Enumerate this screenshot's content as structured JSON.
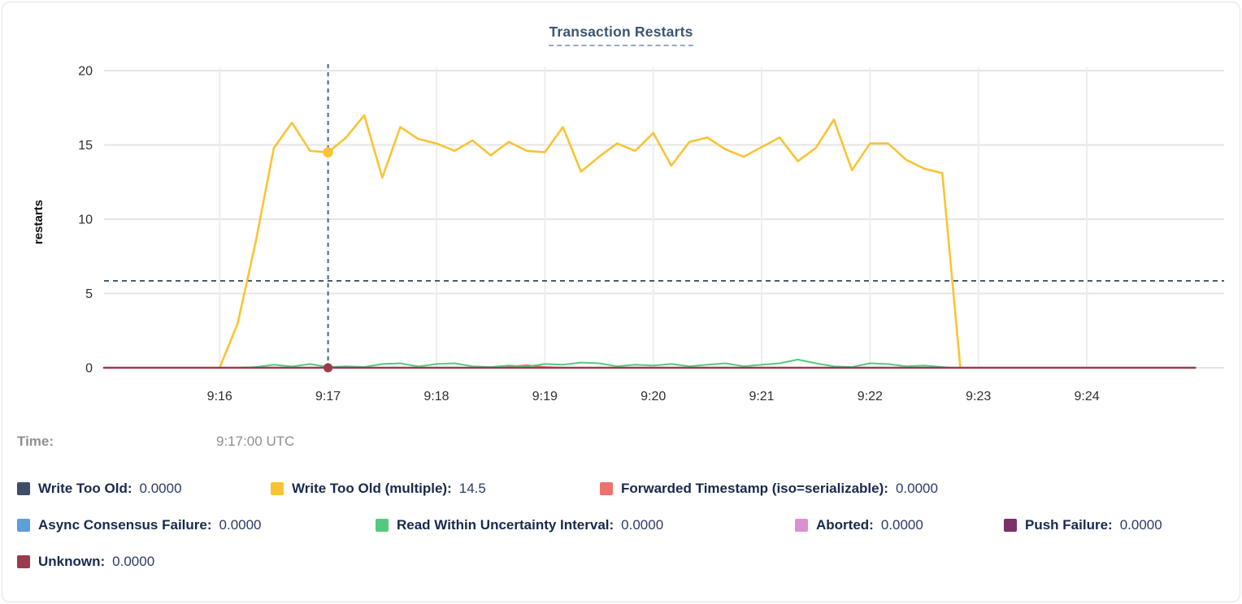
{
  "tooltip": {
    "label": "Time:",
    "value": "9:17:00 UTC"
  },
  "chart_data": {
    "type": "line",
    "title": "Transaction Restarts",
    "xlabel": "",
    "ylabel": "restarts",
    "ylim": [
      0,
      20
    ],
    "yticks": [
      0,
      5,
      10,
      15,
      20
    ],
    "xticks": [
      "9:16",
      "9:17",
      "9:18",
      "9:19",
      "9:20",
      "9:21",
      "9:22",
      "9:23",
      "9:24"
    ],
    "x_tick_interval_seconds": 60,
    "x_domain_seconds": [
      -64,
      556
    ],
    "grid": true,
    "legend_position": "bottom",
    "reference_line_y": 5.85,
    "cursor": {
      "time_label": "9:17:00 UTC",
      "t_seconds": 60
    },
    "cursor_dots": [
      {
        "series": "Write Too Old (multiple)",
        "t": 60,
        "v": 14.5
      },
      {
        "series": "Unknown",
        "t": 60,
        "v": 0
      }
    ],
    "series": [
      {
        "name": "Write Too Old",
        "color": "#3E4E68",
        "cursor_value": "0.0000",
        "points": [
          [
            -64,
            0
          ],
          [
            405,
            0
          ]
        ]
      },
      {
        "name": "Write Too Old (multiple)",
        "color": "#F9C433",
        "cursor_value": "14.5",
        "points": [
          [
            0,
            0
          ],
          [
            10,
            3.0
          ],
          [
            20,
            8.5
          ],
          [
            30,
            14.8
          ],
          [
            40,
            16.5
          ],
          [
            50,
            14.6
          ],
          [
            60,
            14.5
          ],
          [
            70,
            15.5
          ],
          [
            80,
            17.0
          ],
          [
            90,
            12.8
          ],
          [
            100,
            16.2
          ],
          [
            110,
            15.4
          ],
          [
            120,
            15.1
          ],
          [
            130,
            14.6
          ],
          [
            140,
            15.3
          ],
          [
            150,
            14.3
          ],
          [
            160,
            15.2
          ],
          [
            170,
            14.6
          ],
          [
            180,
            14.5
          ],
          [
            190,
            16.2
          ],
          [
            200,
            13.2
          ],
          [
            210,
            14.2
          ],
          [
            220,
            15.1
          ],
          [
            230,
            14.6
          ],
          [
            240,
            15.8
          ],
          [
            250,
            13.6
          ],
          [
            260,
            15.2
          ],
          [
            270,
            15.5
          ],
          [
            280,
            14.7
          ],
          [
            290,
            14.2
          ],
          [
            300,
            14.85
          ],
          [
            310,
            15.5
          ],
          [
            320,
            13.9
          ],
          [
            330,
            14.8
          ],
          [
            340,
            16.7
          ],
          [
            350,
            13.3
          ],
          [
            360,
            15.1
          ],
          [
            370,
            15.1
          ],
          [
            380,
            14.0
          ],
          [
            390,
            13.4
          ],
          [
            400,
            13.1
          ],
          [
            410,
            0
          ]
        ]
      },
      {
        "name": "Forwarded Timestamp (iso=serializable)",
        "color": "#EE716F",
        "cursor_value": "0.0000",
        "points": [
          [
            -64,
            0
          ],
          [
            150,
            0
          ],
          [
            160,
            0.08
          ],
          [
            170,
            0.17
          ],
          [
            180,
            0.05
          ],
          [
            190,
            0
          ],
          [
            405,
            0
          ]
        ]
      },
      {
        "name": "Async Consensus Failure",
        "color": "#5C9FD9",
        "cursor_value": "0.0000",
        "points": [
          [
            -64,
            0
          ],
          [
            405,
            0
          ]
        ]
      },
      {
        "name": "Read Within Uncertainty Interval",
        "color": "#55C980",
        "cursor_value": "0.0000",
        "points": [
          [
            -64,
            0
          ],
          [
            0,
            0
          ],
          [
            10,
            0
          ],
          [
            20,
            0.05
          ],
          [
            30,
            0.2
          ],
          [
            40,
            0.08
          ],
          [
            50,
            0.25
          ],
          [
            60,
            0.05
          ],
          [
            70,
            0.1
          ],
          [
            80,
            0.05
          ],
          [
            90,
            0.25
          ],
          [
            100,
            0.3
          ],
          [
            110,
            0.08
          ],
          [
            120,
            0.25
          ],
          [
            130,
            0.3
          ],
          [
            140,
            0.1
          ],
          [
            150,
            0.05
          ],
          [
            160,
            0.15
          ],
          [
            170,
            0.08
          ],
          [
            180,
            0.25
          ],
          [
            190,
            0.2
          ],
          [
            200,
            0.35
          ],
          [
            210,
            0.3
          ],
          [
            220,
            0.1
          ],
          [
            230,
            0.2
          ],
          [
            240,
            0.15
          ],
          [
            250,
            0.25
          ],
          [
            260,
            0.1
          ],
          [
            270,
            0.2
          ],
          [
            280,
            0.3
          ],
          [
            290,
            0.1
          ],
          [
            300,
            0.2
          ],
          [
            310,
            0.3
          ],
          [
            320,
            0.55
          ],
          [
            330,
            0.3
          ],
          [
            340,
            0.1
          ],
          [
            350,
            0.05
          ],
          [
            360,
            0.3
          ],
          [
            370,
            0.25
          ],
          [
            380,
            0.1
          ],
          [
            390,
            0.15
          ],
          [
            400,
            0.05
          ],
          [
            405,
            0
          ]
        ]
      },
      {
        "name": "Aborted",
        "color": "#DC8FD3",
        "cursor_value": "0.0000",
        "points": [
          [
            -64,
            0
          ],
          [
            405,
            0
          ]
        ]
      },
      {
        "name": "Push Failure",
        "color": "#7C3067",
        "cursor_value": "0.0000",
        "points": [
          [
            -64,
            0
          ],
          [
            405,
            0
          ]
        ]
      },
      {
        "name": "Unknown",
        "color": "#9C3A4D",
        "cursor_value": "0.0000",
        "points": [
          [
            -64,
            0
          ],
          [
            540,
            0
          ]
        ]
      }
    ],
    "legend_rows": [
      [
        0,
        1,
        2
      ],
      [
        3,
        4,
        5,
        6
      ],
      [
        7
      ]
    ]
  }
}
